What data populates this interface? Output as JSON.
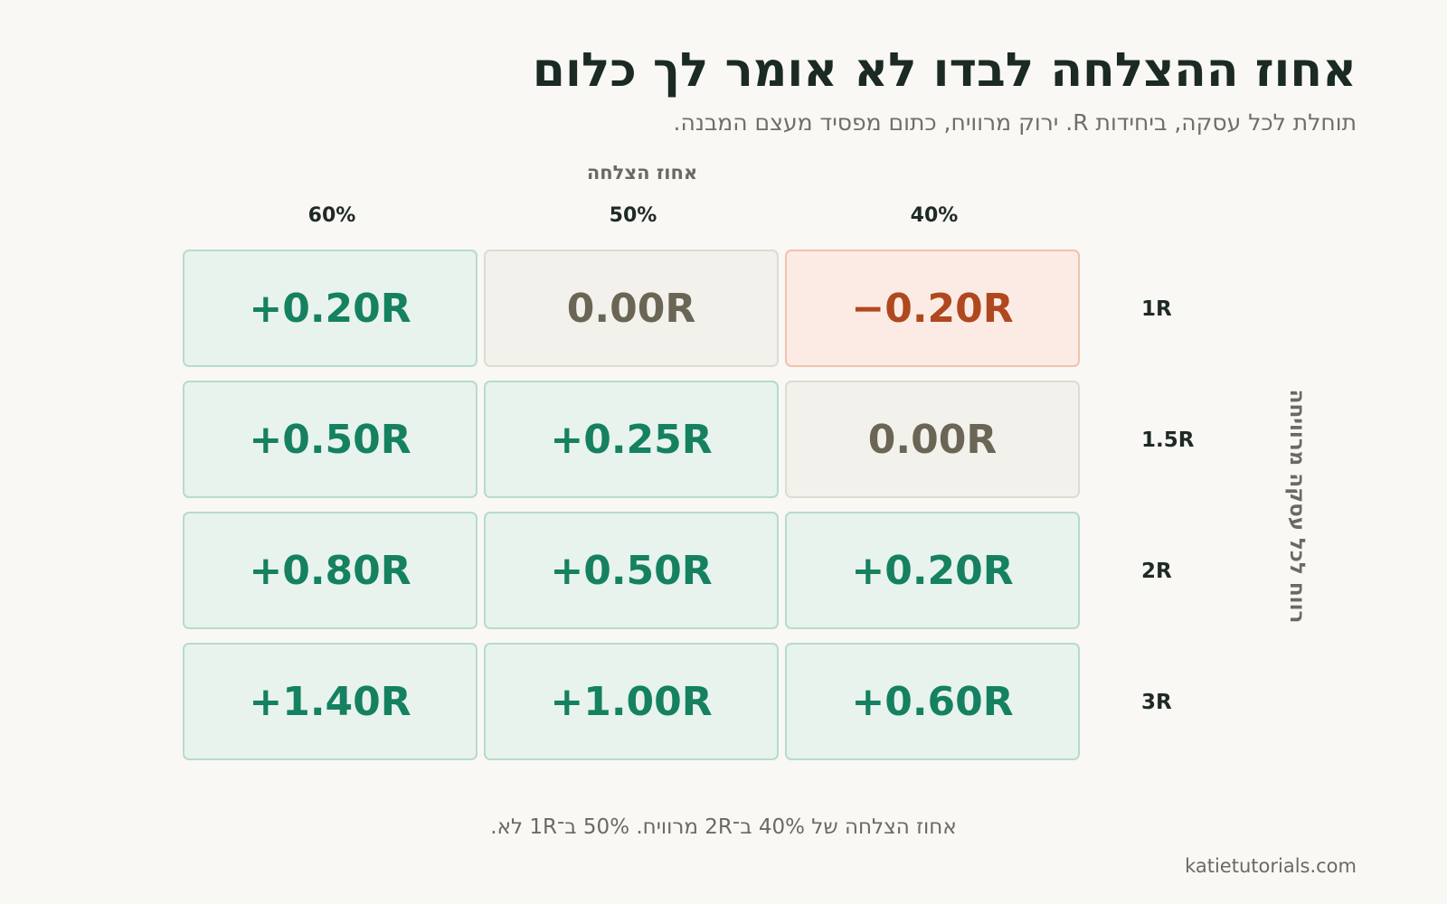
{
  "title": "אחוז ההצלחה לבדו לא אומר לך כלום",
  "subtitle": "תוחלת לכל עסקה, ביחידות R. ירוק מרוויח, כתום מפסיד מעצם המבנה.",
  "col_axis_title": "אחוז הצלחה",
  "row_axis_title": "רווח לכל עסקה מרוויחה",
  "columns": [
    "40%",
    "50%",
    "60%"
  ],
  "rows": [
    {
      "label": "1R",
      "cells": [
        {
          "text": "−0.20R",
          "value": -0.2
        },
        {
          "text": "0.00R",
          "value": 0.0
        },
        {
          "text": "+0.20R",
          "value": 0.2
        }
      ]
    },
    {
      "label": "1.5R",
      "cells": [
        {
          "text": "0.00R",
          "value": 0.0
        },
        {
          "text": "+0.25R",
          "value": 0.25
        },
        {
          "text": "+0.50R",
          "value": 0.5
        }
      ]
    },
    {
      "label": "2R",
      "cells": [
        {
          "text": "+0.20R",
          "value": 0.2
        },
        {
          "text": "+0.50R",
          "value": 0.5
        },
        {
          "text": "+0.80R",
          "value": 0.8
        }
      ]
    },
    {
      "label": "3R",
      "cells": [
        {
          "text": "+0.60R",
          "value": 0.6
        },
        {
          "text": "+1.00R",
          "value": 1.0
        },
        {
          "text": "+1.40R",
          "value": 1.4
        }
      ]
    }
  ],
  "colors": {
    "positive": "#158160",
    "neutral": "#6a6555",
    "negative": "#b0481f"
  },
  "footnote": "אחוז הצלחה של 40% ב־2R מרוויח. 50% ב־1R לא.",
  "source": "katietutorials.com"
}
